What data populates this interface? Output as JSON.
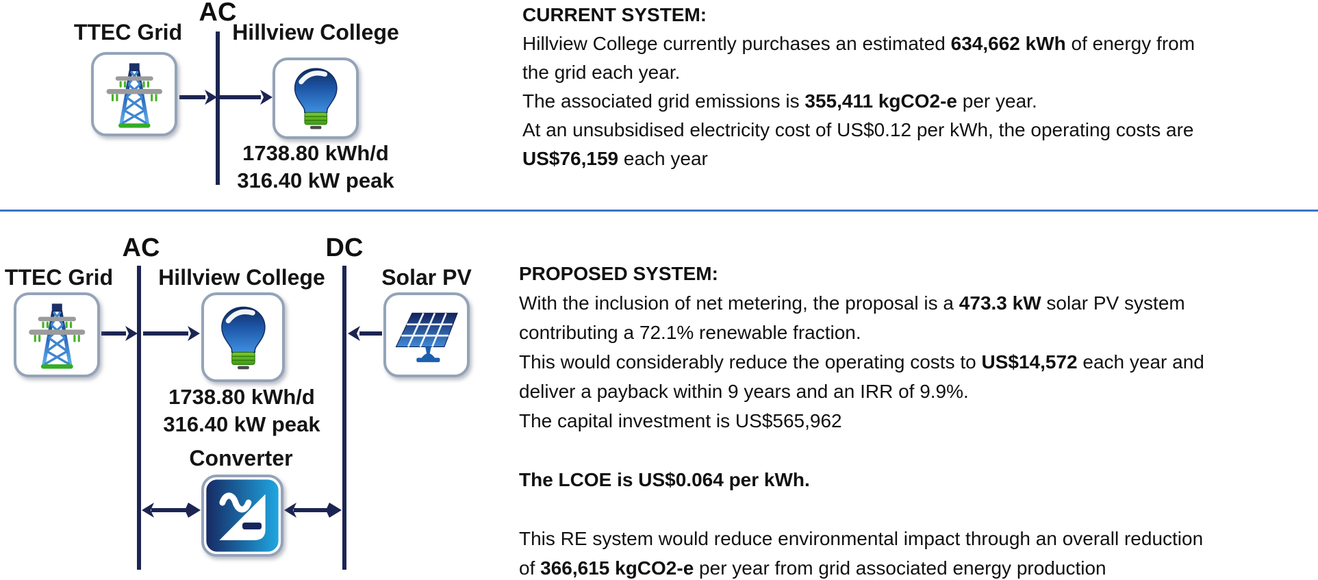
{
  "colors": {
    "bus": "#1c2552",
    "divider": "#3b74c9",
    "tile-border": "#94a3b8",
    "tower_blue": "#2f6fc1",
    "bulb_blue": "#1e57a8",
    "screw_green": "#4ea51c",
    "base_green": "#34ad26",
    "panel_blue": "#2f7fd4",
    "converter_dark": "#172a64",
    "converter_light": "#1fa6e0"
  },
  "top_diagram": {
    "bus_label": "AC",
    "grid_label": "TTEC Grid",
    "load_label": "Hillview College",
    "load_stats": [
      "1738.80 kWh/d",
      "316.40 kW peak"
    ]
  },
  "bottom_diagram": {
    "ac_bus_label": "AC",
    "dc_bus_label": "DC",
    "grid_label": "TTEC Grid",
    "load_label": "Hillview College",
    "pv_label": "Solar PV",
    "converter_label": "Converter",
    "load_stats": [
      "1738.80 kWh/d",
      "316.40 kW peak"
    ]
  },
  "current_system": {
    "lines": [
      [
        {
          "t": "CURRENT SYSTEM:",
          "b": true
        }
      ],
      [
        {
          "t": "Hillview College currently purchases an estimated ",
          "b": false
        },
        {
          "t": "634,662 kWh",
          "b": true
        },
        {
          "t": " of energy from",
          "b": false
        }
      ],
      [
        {
          "t": "the grid each year.",
          "b": false
        }
      ],
      [
        {
          "t": "The associated grid emissions is ",
          "b": false
        },
        {
          "t": "355,411 kgCO2-e",
          "b": true
        },
        {
          "t": " per year.",
          "b": false
        }
      ],
      [
        {
          "t": "At an unsubsidised electricity cost of US$0.12 per kWh, the operating costs are",
          "b": false
        }
      ],
      [
        {
          "t": "US$76,159",
          "b": true
        },
        {
          "t": " each year",
          "b": false
        }
      ]
    ]
  },
  "proposed_system": {
    "lines": [
      [
        {
          "t": "PROPOSED SYSTEM:",
          "b": true
        }
      ],
      [
        {
          "t": "With the inclusion of net metering, the proposal is a ",
          "b": false
        },
        {
          "t": "473.3 kW",
          "b": true
        },
        {
          "t": " solar PV system",
          "b": false
        }
      ],
      [
        {
          "t": "contributing a 72.1% renewable fraction.",
          "b": false
        }
      ],
      [
        {
          "t": "This would considerably reduce the operating costs to ",
          "b": false
        },
        {
          "t": "US$14,572",
          "b": true
        },
        {
          "t": " each year and",
          "b": false
        }
      ],
      [
        {
          "t": "deliver a payback within 9 years and an IRR of 9.9%.",
          "b": false
        }
      ],
      [
        {
          "t": "The capital investment is US$565,962",
          "b": false
        }
      ],
      [
        {
          "t": "",
          "b": false
        }
      ],
      [
        {
          "t": "The LCOE is US$0.064 per kWh.",
          "b": true
        }
      ],
      [
        {
          "t": "",
          "b": false
        }
      ],
      [
        {
          "t": "This RE system would reduce environmental impact through an overall reduction",
          "b": false
        }
      ],
      [
        {
          "t": "of ",
          "b": false
        },
        {
          "t": "366,615 kgCO2-e",
          "b": true
        },
        {
          "t": " per year from grid associated energy production",
          "b": false
        }
      ]
    ]
  }
}
